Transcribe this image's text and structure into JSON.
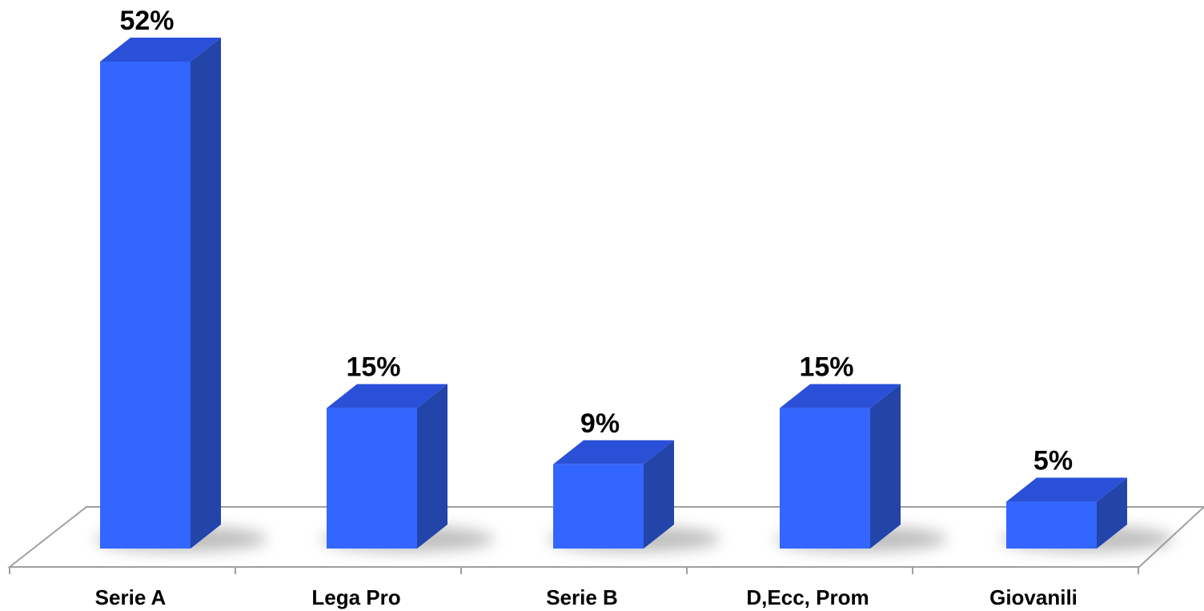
{
  "chart_data": {
    "type": "bar",
    "title": "",
    "xlabel": "",
    "ylabel": "",
    "categories": [
      "Serie A",
      "Lega Pro",
      "Serie B",
      "D,Ecc, Prom",
      "Giovanili"
    ],
    "values": [
      52,
      15,
      9,
      15,
      5
    ],
    "value_labels": [
      "52%",
      "15%",
      "9%",
      "15%",
      "5%"
    ],
    "unit": "%",
    "ylim": [
      0,
      52
    ],
    "grid": false,
    "legend": "none",
    "style": "3d-column",
    "colors": {
      "front": "#3366ff",
      "side": "#2344a8",
      "top": "#2a50d8",
      "floor_line": "#a0a0a0",
      "shadow": "#8a8a8a"
    }
  }
}
